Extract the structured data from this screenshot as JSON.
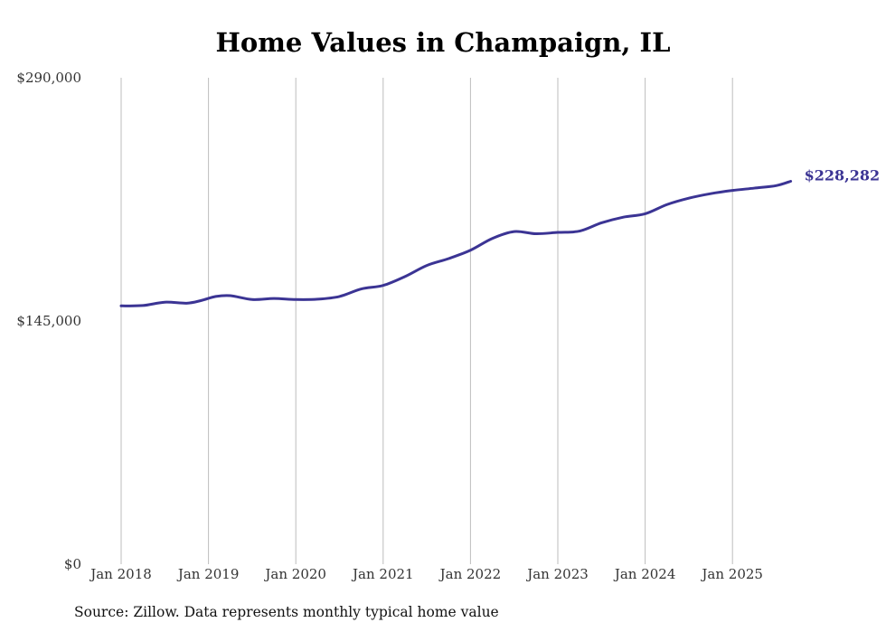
{
  "chart_data": {
    "type": "line",
    "title": "Home Values in Champaign, IL",
    "xlabel": "",
    "ylabel": "",
    "ylim": [
      0,
      290000
    ],
    "y_ticks": [
      {
        "value": 0,
        "label": "$0"
      },
      {
        "value": 145000,
        "label": "$145,000"
      },
      {
        "value": 290000,
        "label": "$290,000"
      }
    ],
    "x_ticks": [
      {
        "month_index": 0,
        "label": "Jan 2018"
      },
      {
        "month_index": 12,
        "label": "Jan 2019"
      },
      {
        "month_index": 24,
        "label": "Jan 2020"
      },
      {
        "month_index": 36,
        "label": "Jan 2021"
      },
      {
        "month_index": 48,
        "label": "Jan 2022"
      },
      {
        "month_index": 60,
        "label": "Jan 2023"
      },
      {
        "month_index": 72,
        "label": "Jan 2024"
      },
      {
        "month_index": 84,
        "label": "Jan 2025"
      }
    ],
    "grid": "vertical",
    "series": [
      {
        "name": "Typical home value",
        "color": "#3b3494",
        "x_start": "Jan 2018",
        "x_unit": "month",
        "points": [
          [
            0,
            154000
          ],
          [
            3,
            154200
          ],
          [
            6,
            156200
          ],
          [
            9,
            155600
          ],
          [
            11,
            157200
          ],
          [
            13,
            159600
          ],
          [
            15,
            160100
          ],
          [
            18,
            157800
          ],
          [
            21,
            158400
          ],
          [
            24,
            157800
          ],
          [
            27,
            158000
          ],
          [
            30,
            159600
          ],
          [
            33,
            164100
          ],
          [
            36,
            166200
          ],
          [
            39,
            171500
          ],
          [
            42,
            178100
          ],
          [
            45,
            182200
          ],
          [
            48,
            187200
          ],
          [
            51,
            194200
          ],
          [
            54,
            198300
          ],
          [
            57,
            197000
          ],
          [
            60,
            197800
          ],
          [
            63,
            198600
          ],
          [
            66,
            203500
          ],
          [
            69,
            206900
          ],
          [
            72,
            208900
          ],
          [
            75,
            214400
          ],
          [
            78,
            218200
          ],
          [
            81,
            220900
          ],
          [
            84,
            222800
          ],
          [
            87,
            224200
          ],
          [
            90,
            225700
          ],
          [
            92,
            228282
          ]
        ]
      }
    ],
    "end_label": "$228,282"
  },
  "source_note": "Source: Zillow. Data represents monthly typical home value",
  "colors": {
    "line": "#3b3494",
    "grid": "#bdbdbd",
    "text": "#333333"
  }
}
